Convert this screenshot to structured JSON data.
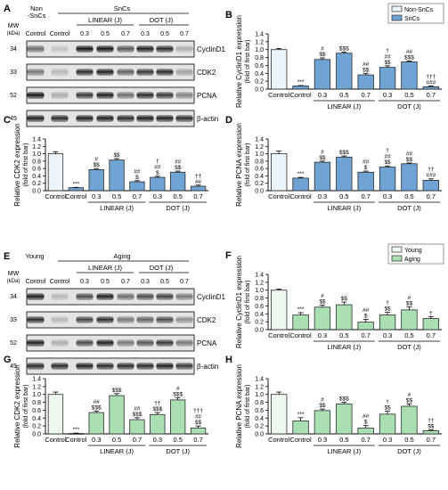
{
  "panels": {
    "A": {
      "letter": "A",
      "hdr1": "Non",
      "hdr2": "-SnCs",
      "group": "SnCs",
      "sub_left": "LINEAR (J)",
      "sub_right": "DOT (J)"
    },
    "E": {
      "letter": "E",
      "hdr1": "Young",
      "hdr2": "",
      "group": "Aging",
      "sub_left": "LINEAR (J)",
      "sub_right": "DOT (J)"
    }
  },
  "blot_common": {
    "mw_title": "MW",
    "mw_unit": "(kDa)",
    "lane_labels": [
      "Control",
      "Control",
      "0.3",
      "0.5",
      "0.7",
      "0.3",
      "0.5",
      "0.7"
    ],
    "rows": [
      {
        "mw": "34",
        "name": "CyclinD1"
      },
      {
        "mw": "33",
        "name": "CDK2"
      },
      {
        "mw": "52",
        "name": "PCNA"
      },
      {
        "mw": "45",
        "name": "β-actin"
      }
    ]
  },
  "colors": {
    "blue": "#6fa3d3",
    "blue_light": "#ebf3fb",
    "green": "#a9dfb3",
    "green_light": "#eef9f0",
    "edge": "#2b2b2b"
  },
  "chart_data": [
    {
      "panel": "B",
      "type": "bar",
      "ylabel": "Relative CyclinD1 expression",
      "ylabel2": "(fold of first bar)",
      "ylim": [
        0,
        1.4
      ],
      "ticks": [
        0,
        0.2,
        0.4,
        0.6,
        0.8,
        1.0,
        1.2,
        1.4
      ],
      "categories": [
        "Control",
        "Control",
        "0.3",
        "0.5",
        "0.7",
        "0.3",
        "0.5",
        "0.7"
      ],
      "groups": [
        "LINEAR (J)",
        "DOT (J)"
      ],
      "theme": "blue",
      "legend": [
        "Non-SnCs",
        "SnCs"
      ],
      "values": [
        1.0,
        0.08,
        0.75,
        0.91,
        0.36,
        0.55,
        0.69,
        0.06
      ],
      "errors": [
        0.03,
        0.01,
        0.04,
        0.03,
        0.04,
        0.04,
        0.02,
        0.02
      ],
      "annotations": [
        [],
        [
          "***"
        ],
        [
          "#",
          "$$"
        ],
        [
          "$$$"
        ],
        [
          "##",
          "$$"
        ],
        [
          "†",
          "##",
          "$$"
        ],
        [
          "##",
          "$$$"
        ],
        [
          "†††",
          "###"
        ]
      ]
    },
    {
      "panel": "C",
      "type": "bar",
      "ylabel": "Relative CDK2 expression",
      "ylabel2": "(fold of first bar)",
      "ylim": [
        0,
        1.4
      ],
      "ticks": [
        0,
        0.2,
        0.4,
        0.6,
        0.8,
        1.0,
        1.2,
        1.4
      ],
      "categories": [
        "Control",
        "Control",
        "0.3",
        "0.5",
        "0.7",
        "0.3",
        "0.5",
        "0.7"
      ],
      "groups": [
        "LINEAR (J)",
        "DOT (J)"
      ],
      "theme": "blue",
      "values": [
        1.0,
        0.08,
        0.57,
        0.83,
        0.24,
        0.36,
        0.5,
        0.12
      ],
      "errors": [
        0.05,
        0.01,
        0.03,
        0.04,
        0.03,
        0.03,
        0.03,
        0.03
      ],
      "annotations": [
        [],
        [
          "***"
        ],
        [
          "#",
          "$$"
        ],
        [
          "$$"
        ],
        [
          "##",
          "$"
        ],
        [
          "†",
          "##",
          "$"
        ],
        [
          "##",
          "$$"
        ],
        [
          "††",
          "##"
        ]
      ]
    },
    {
      "panel": "D",
      "type": "bar",
      "ylabel": "Relative PCNA expression",
      "ylabel2": "(fold of first bar)",
      "ylim": [
        0,
        1.4
      ],
      "ticks": [
        0,
        0.2,
        0.4,
        0.6,
        0.8,
        1.0,
        1.2,
        1.4
      ],
      "categories": [
        "Control",
        "Control",
        "0.3",
        "0.5",
        "0.7",
        "0.3",
        "0.5",
        "0.7"
      ],
      "groups": [
        "LINEAR (J)",
        "DOT (J)"
      ],
      "theme": "blue",
      "values": [
        1.0,
        0.34,
        0.77,
        0.91,
        0.5,
        0.64,
        0.73,
        0.28
      ],
      "errors": [
        0.07,
        0.02,
        0.03,
        0.03,
        0.03,
        0.03,
        0.02,
        0.04
      ],
      "annotations": [
        [],
        [
          "***"
        ],
        [
          "#",
          "$$"
        ],
        [
          "$$$"
        ],
        [
          "##",
          "$"
        ],
        [
          "†",
          "##",
          "$$"
        ],
        [
          "##",
          "$$"
        ],
        [
          "††",
          "###"
        ]
      ]
    },
    {
      "panel": "F",
      "type": "bar",
      "ylabel": "Relative CyclinD1 expression",
      "ylabel2": "(fold of first bar)",
      "ylim": [
        0,
        1.4
      ],
      "ticks": [
        0,
        0.2,
        0.4,
        0.6,
        0.8,
        1.0,
        1.2,
        1.4
      ],
      "categories": [
        "Control",
        "Control",
        "0.3",
        "0.5",
        "0.7",
        "0.3",
        "0.5",
        "0.7"
      ],
      "groups": [
        "LINEAR (J)",
        "DOT (J)"
      ],
      "theme": "green",
      "legend": [
        "Young",
        "Aging"
      ],
      "values": [
        1.0,
        0.37,
        0.57,
        0.63,
        0.19,
        0.37,
        0.5,
        0.28
      ],
      "errors": [
        0.03,
        0.06,
        0.05,
        0.07,
        0.07,
        0.07,
        0.08,
        0.05
      ],
      "annotations": [
        [],
        [
          "***"
        ],
        [
          "#",
          "$$"
        ],
        [
          "$$"
        ],
        [
          "##",
          "$"
        ],
        [
          "†",
          "$$"
        ],
        [
          "#",
          "$$"
        ],
        [
          "†"
        ]
      ]
    },
    {
      "panel": "G",
      "type": "bar",
      "ylabel": "Relative CDK2 expression",
      "ylabel2": "(fold of first bar)",
      "ylim": [
        0,
        1.4
      ],
      "ticks": [
        0,
        0.2,
        0.4,
        0.6,
        0.8,
        1.0,
        1.2,
        1.4
      ],
      "categories": [
        "Control",
        "Control",
        "0.3",
        "0.5",
        "0.7",
        "0.3",
        "0.5",
        "0.7"
      ],
      "groups": [
        "LINEAR (J)",
        "DOT (J)"
      ],
      "theme": "green",
      "values": [
        1.0,
        0.01,
        0.54,
        0.97,
        0.36,
        0.49,
        0.86,
        0.15
      ],
      "errors": [
        0.06,
        0.01,
        0.04,
        0.05,
        0.05,
        0.05,
        0.06,
        0.05
      ],
      "annotations": [
        [],
        [
          "***"
        ],
        [
          "##",
          "$$$"
        ],
        [
          "$$$"
        ],
        [
          "##",
          "$$$"
        ],
        [
          "††",
          "$$$"
        ],
        [
          "#",
          "$$$"
        ],
        [
          "†††",
          "##",
          "$$"
        ]
      ]
    },
    {
      "panel": "H",
      "type": "bar",
      "ylabel": "Relative PCNA expression",
      "ylabel2": "(fold of first bar)",
      "ylim": [
        0,
        1.4
      ],
      "ticks": [
        0,
        0.2,
        0.4,
        0.6,
        0.8,
        1.0,
        1.2,
        1.4
      ],
      "categories": [
        "Control",
        "Control",
        "0.3",
        "0.5",
        "0.7",
        "0.3",
        "0.5",
        "0.7"
      ],
      "groups": [
        "LINEAR (J)",
        "DOT (J)"
      ],
      "theme": "green",
      "values": [
        1.0,
        0.33,
        0.59,
        0.76,
        0.15,
        0.5,
        0.7,
        0.08
      ],
      "errors": [
        0.06,
        0.08,
        0.04,
        0.04,
        0.06,
        0.08,
        0.06,
        0.02
      ],
      "annotations": [
        [],
        [
          "***"
        ],
        [
          "#",
          "$$"
        ],
        [
          "$$$"
        ],
        [
          "##",
          "$"
        ],
        [
          "†",
          "$$"
        ],
        [
          "#",
          "$$"
        ],
        [
          "††",
          "$$"
        ]
      ]
    }
  ]
}
